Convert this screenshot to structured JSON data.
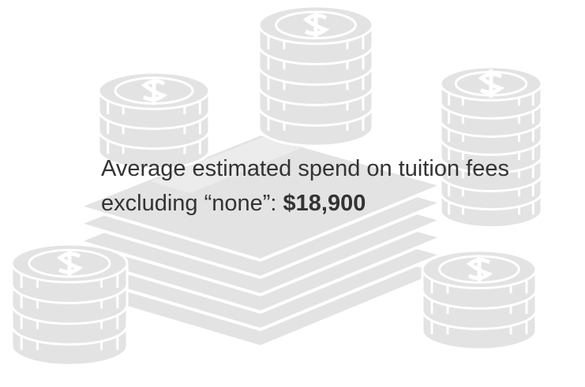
{
  "caption": {
    "line1": "Average estimated spend on tuition fees",
    "line2": "excluding “none”:",
    "amount": "$18,900"
  }
}
